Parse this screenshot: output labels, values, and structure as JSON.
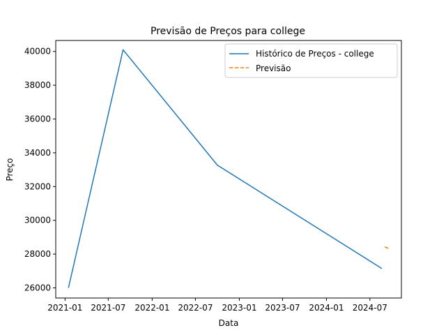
{
  "chart_data": {
    "type": "line",
    "title": "Previsão de Preços para college",
    "xlabel": "Data",
    "ylabel": "Preço",
    "x_ticks": [
      "2021-01",
      "2021-07",
      "2022-01",
      "2022-07",
      "2023-01",
      "2023-07",
      "2024-01",
      "2024-07"
    ],
    "y_ticks": [
      26000,
      28000,
      30000,
      32000,
      34000,
      36000,
      38000,
      40000
    ],
    "xlim": [
      "2020-11-23",
      "2024-11-10"
    ],
    "ylim": [
      25400,
      40650
    ],
    "legend_position": "top-right",
    "grid": false,
    "series": [
      {
        "name": "Histórico de Preços - college",
        "style": "solid",
        "color": "#1f77b4",
        "x": [
          "2021-01-15",
          "2021-09-01",
          "2022-10-01",
          "2024-08-20"
        ],
        "y": [
          26000,
          40100,
          33270,
          27150
        ]
      },
      {
        "name": "Previsão",
        "style": "dashed",
        "color": "#ff7f0e",
        "x": [
          "2024-09-01",
          "2024-09-20"
        ],
        "y": [
          28430,
          28320
        ]
      }
    ]
  }
}
